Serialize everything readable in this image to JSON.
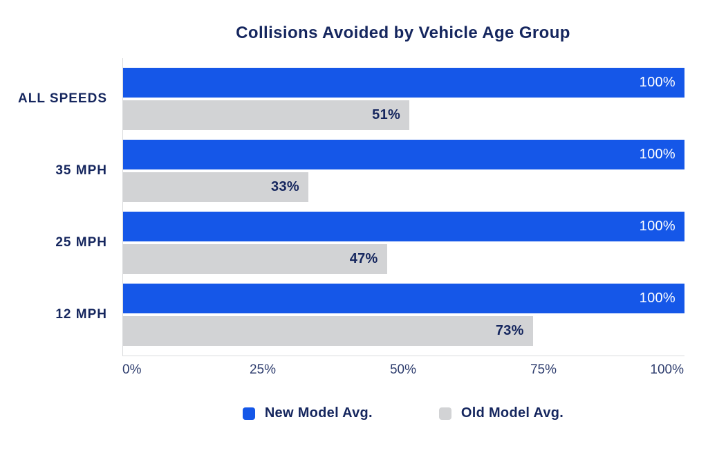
{
  "chart_data": {
    "type": "bar",
    "orientation": "horizontal",
    "title": "Collisions Avoided by Vehicle Age Group",
    "categories": [
      "ALL SPEEDS",
      "35 MPH",
      "25 MPH",
      "12 MPH"
    ],
    "series": [
      {
        "name": "New Model Avg.",
        "color": "#1557e8",
        "label_color": "#ffffff",
        "values": [
          100,
          100,
          100,
          100
        ],
        "labels": [
          "100%",
          "100%",
          "100%",
          "100%"
        ]
      },
      {
        "name": "Old Model Avg.",
        "color": "#d2d3d5",
        "label_color": "#15265e",
        "values": [
          51,
          33,
          47,
          73
        ],
        "labels": [
          "51%",
          "33%",
          "47%",
          "73%"
        ]
      }
    ],
    "xlabel": "",
    "ylabel": "",
    "xlim": [
      0,
      100
    ],
    "x_ticks": [
      "0%",
      "25%",
      "50%",
      "75%",
      "100%"
    ],
    "x_tick_positions": [
      0,
      25,
      50,
      75,
      100
    ],
    "grid": false,
    "legend_position": "bottom",
    "axis_line_color": "#d9dadc",
    "title_color": "#15265e",
    "tick_color": "#2e3d6e",
    "background_color": "#ffffff"
  }
}
